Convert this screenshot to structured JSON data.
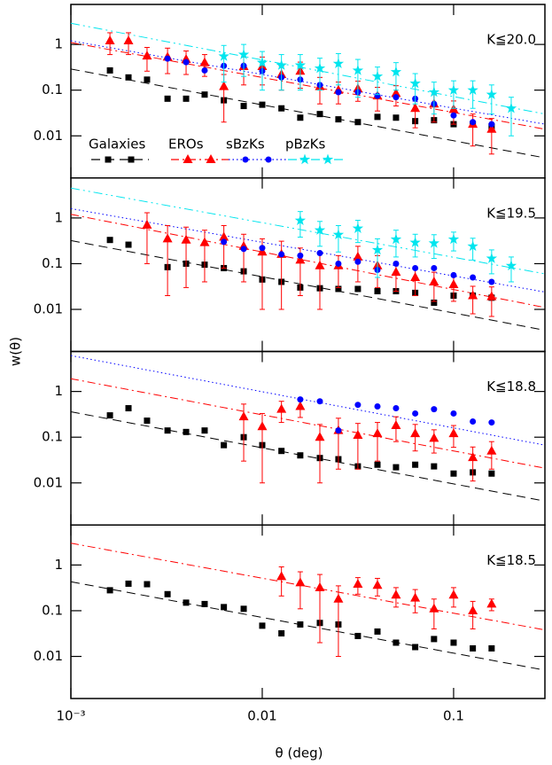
{
  "chart_data": [
    {
      "type": "scatter",
      "label": "K≦20.0",
      "ylabel": "w(θ)",
      "xlog": true,
      "ylog": true,
      "xlim": [
        0.001,
        0.3
      ],
      "ylim": [
        0.0012,
        7.5
      ],
      "yticks": [
        0.01,
        0.1,
        1
      ],
      "x": [
        0.0016,
        0.002,
        0.0025,
        0.0032,
        0.004,
        0.005,
        0.0063,
        0.008,
        0.01,
        0.0126,
        0.0158,
        0.02,
        0.025,
        0.0316,
        0.04,
        0.05,
        0.063,
        0.079,
        0.1,
        0.126,
        0.158,
        0.2
      ],
      "series": [
        {
          "name": "Galaxies",
          "color": "#000000",
          "marker": "square",
          "values": [
            0.27,
            0.19,
            0.17,
            0.065,
            0.065,
            0.08,
            0.06,
            0.045,
            0.048,
            0.04,
            0.025,
            0.03,
            0.023,
            0.02,
            0.026,
            0.025,
            0.021,
            0.022,
            0.018,
            0.018,
            0.016,
            null
          ]
        },
        {
          "name": "EROs",
          "color": "#ff0000",
          "marker": "triangle",
          "values": [
            1.2,
            1.2,
            0.56,
            0.53,
            0.47,
            0.4,
            0.12,
            0.33,
            0.33,
            0.22,
            0.26,
            0.12,
            0.1,
            0.107,
            0.075,
            0.085,
            0.04,
            0.05,
            0.038,
            0.018,
            0.014,
            null
          ],
          "errors": [
            0.6,
            0.6,
            0.3,
            0.3,
            0.25,
            0.2,
            0.1,
            0.2,
            0.2,
            0.12,
            0.15,
            0.07,
            0.05,
            0.05,
            0.04,
            0.04,
            0.025,
            0.03,
            0.02,
            0.012,
            0.01,
            null
          ]
        },
        {
          "name": "sBzKs",
          "color": "#0000ff",
          "marker": "circle",
          "values": [
            null,
            null,
            null,
            0.49,
            0.41,
            0.27,
            0.34,
            0.34,
            0.26,
            0.19,
            0.17,
            0.13,
            0.09,
            0.09,
            0.075,
            0.07,
            0.065,
            0.05,
            0.028,
            0.02,
            0.018,
            null
          ]
        },
        {
          "name": "pBzKs",
          "color": "#00e5ee",
          "marker": "star",
          "values": [
            null,
            null,
            null,
            null,
            null,
            null,
            0.55,
            0.6,
            0.4,
            0.35,
            0.35,
            0.3,
            0.38,
            0.27,
            0.2,
            0.25,
            0.14,
            0.09,
            0.1,
            0.1,
            0.08,
            0.04
          ],
          "errors": [
            null,
            null,
            null,
            null,
            null,
            null,
            0.4,
            0.4,
            0.3,
            0.25,
            0.25,
            0.2,
            0.25,
            0.2,
            0.12,
            0.15,
            0.09,
            0.06,
            0.06,
            0.06,
            0.05,
            0.03
          ]
        }
      ],
      "fits": [
        {
          "color": "#000000",
          "style": "dashed",
          "values": [
            0.29,
            0.0033
          ]
        },
        {
          "color": "#ff0000",
          "style": "dashdot",
          "values": [
            1.1,
            0.014
          ]
        },
        {
          "color": "#0000ff",
          "style": "dotted",
          "values": [
            1.2,
            0.018
          ]
        },
        {
          "color": "#00e5ee",
          "style": "dashdotdot",
          "values": [
            2.9,
            0.03
          ]
        }
      ]
    },
    {
      "type": "scatter",
      "label": "K≦19.5",
      "xlog": true,
      "ylog": true,
      "xlim": [
        0.001,
        0.3
      ],
      "ylim": [
        0.0012,
        7.5
      ],
      "yticks": [
        0.01,
        0.1,
        1
      ],
      "x": [
        0.0016,
        0.002,
        0.0025,
        0.0032,
        0.004,
        0.005,
        0.0063,
        0.008,
        0.01,
        0.0126,
        0.0158,
        0.02,
        0.025,
        0.0316,
        0.04,
        0.05,
        0.063,
        0.079,
        0.1,
        0.126,
        0.158,
        0.2
      ],
      "series": [
        {
          "color": "#000000",
          "marker": "square",
          "values": [
            0.33,
            0.26,
            null,
            0.084,
            0.1,
            0.095,
            0.08,
            0.068,
            0.045,
            0.04,
            0.03,
            0.029,
            0.028,
            0.028,
            0.025,
            0.025,
            0.023,
            0.014,
            0.02,
            0.02,
            0.018,
            null
          ]
        },
        {
          "color": "#ff0000",
          "marker": "triangle",
          "values": [
            null,
            null,
            0.7,
            0.35,
            0.33,
            0.29,
            0.38,
            0.24,
            0.18,
            0.16,
            0.12,
            0.09,
            0.09,
            0.14,
            0.09,
            0.065,
            0.05,
            0.04,
            0.035,
            0.02,
            0.019,
            null
          ],
          "errors": [
            null,
            null,
            0.6,
            0.33,
            0.3,
            0.25,
            0.3,
            0.2,
            0.17,
            0.15,
            0.1,
            0.08,
            0.06,
            0.1,
            0.06,
            0.04,
            0.03,
            0.025,
            0.02,
            0.012,
            0.012,
            null
          ]
        },
        {
          "color": "#0000ff",
          "marker": "circle",
          "values": [
            null,
            null,
            null,
            null,
            null,
            null,
            0.3,
            0.21,
            0.22,
            0.16,
            0.15,
            0.17,
            0.1,
            0.11,
            0.073,
            0.1,
            0.08,
            0.08,
            0.056,
            0.05,
            0.04,
            null
          ]
        },
        {
          "color": "#00e5ee",
          "marker": "star",
          "values": [
            null,
            null,
            null,
            null,
            null,
            null,
            null,
            null,
            null,
            null,
            0.88,
            0.54,
            0.43,
            0.59,
            0.2,
            0.34,
            0.29,
            0.28,
            0.34,
            0.24,
            0.13,
            0.09
          ],
          "errors": [
            null,
            null,
            null,
            null,
            null,
            null,
            null,
            null,
            null,
            null,
            0.5,
            0.3,
            0.25,
            0.3,
            0.15,
            0.2,
            0.15,
            0.15,
            0.15,
            0.12,
            0.07,
            0.05
          ]
        }
      ],
      "fits": [
        {
          "color": "#000000",
          "style": "dashed",
          "values": [
            0.32,
            0.0035
          ]
        },
        {
          "color": "#ff0000",
          "style": "dashdot",
          "values": [
            1.2,
            0.011
          ]
        },
        {
          "color": "#0000ff",
          "style": "dotted",
          "values": [
            1.6,
            0.024
          ]
        },
        {
          "color": "#00e5ee",
          "style": "dashdotdot",
          "values": [
            4.5,
            0.06
          ]
        }
      ]
    },
    {
      "type": "scatter",
      "label": "K≦18.8",
      "xlog": true,
      "ylog": true,
      "xlim": [
        0.001,
        0.3
      ],
      "ylim": [
        0.0012,
        7.5
      ],
      "yticks": [
        0.01,
        0.1,
        1
      ],
      "x": [
        0.0016,
        0.002,
        0.0025,
        0.0032,
        0.004,
        0.005,
        0.0063,
        0.008,
        0.01,
        0.0126,
        0.0158,
        0.02,
        0.025,
        0.0316,
        0.04,
        0.05,
        0.063,
        0.079,
        0.1,
        0.126,
        0.158,
        0.2
      ],
      "series": [
        {
          "color": "#000000",
          "marker": "square",
          "values": [
            0.3,
            0.43,
            0.23,
            0.14,
            0.13,
            0.14,
            0.067,
            0.1,
            0.067,
            0.05,
            0.04,
            0.035,
            0.033,
            0.023,
            0.025,
            0.022,
            0.025,
            0.023,
            0.016,
            0.017,
            0.016,
            null
          ]
        },
        {
          "color": "#ff0000",
          "marker": "triangle",
          "values": [
            null,
            null,
            null,
            null,
            null,
            null,
            null,
            0.28,
            0.17,
            0.41,
            0.47,
            0.1,
            0.14,
            0.11,
            0.12,
            0.18,
            0.12,
            0.095,
            0.12,
            0.036,
            0.05,
            null
          ],
          "errors": [
            null,
            null,
            null,
            null,
            null,
            null,
            null,
            0.25,
            0.16,
            0.2,
            0.2,
            0.09,
            0.12,
            0.09,
            0.09,
            0.1,
            0.07,
            0.05,
            0.06,
            0.025,
            0.03,
            null
          ]
        },
        {
          "color": "#0000ff",
          "marker": "circle",
          "values": [
            null,
            null,
            null,
            null,
            null,
            null,
            null,
            null,
            null,
            null,
            0.67,
            0.61,
            0.14,
            0.51,
            0.47,
            0.43,
            0.33,
            0.41,
            0.33,
            0.22,
            0.21,
            null
          ]
        }
      ],
      "fits": [
        {
          "color": "#000000",
          "style": "dashed",
          "values": [
            0.36,
            0.004
          ]
        },
        {
          "color": "#ff0000",
          "style": "dashdot",
          "values": [
            1.9,
            0.021
          ]
        },
        {
          "color": "#0000ff",
          "style": "dotted",
          "values": [
            6.1,
            0.067
          ]
        }
      ]
    },
    {
      "type": "scatter",
      "label": "K≦18.5",
      "xlabel": "θ (deg)",
      "xlog": true,
      "ylog": true,
      "xlim": [
        0.001,
        0.3
      ],
      "ylim": [
        0.0012,
        7.5
      ],
      "yticks": [
        0.01,
        0.1,
        1
      ],
      "xticks": [
        {
          "value": 0.001,
          "label": "10⁻³"
        },
        0.01,
        0.1
      ],
      "x": [
        0.0016,
        0.002,
        0.0025,
        0.0032,
        0.004,
        0.005,
        0.0063,
        0.008,
        0.01,
        0.0126,
        0.0158,
        0.02,
        0.025,
        0.0316,
        0.04,
        0.05,
        0.063,
        0.079,
        0.1,
        0.126,
        0.158,
        0.2
      ],
      "series": [
        {
          "color": "#000000",
          "marker": "square",
          "values": [
            0.28,
            0.39,
            0.38,
            0.23,
            0.15,
            0.14,
            0.12,
            0.11,
            0.047,
            0.032,
            0.05,
            0.054,
            0.05,
            0.028,
            0.035,
            0.02,
            0.016,
            0.024,
            0.02,
            0.015,
            0.015,
            null
          ]
        },
        {
          "color": "#ff0000",
          "marker": "triangle",
          "values": [
            null,
            null,
            null,
            null,
            null,
            null,
            null,
            null,
            null,
            0.56,
            0.41,
            0.32,
            0.18,
            0.38,
            0.36,
            0.22,
            0.19,
            0.11,
            0.22,
            0.1,
            0.14,
            null
          ],
          "errors": [
            null,
            null,
            null,
            null,
            null,
            null,
            null,
            null,
            null,
            0.35,
            0.3,
            0.3,
            0.17,
            0.15,
            0.15,
            0.1,
            0.1,
            0.07,
            0.1,
            0.06,
            0.04,
            null
          ]
        }
      ],
      "fits": [
        {
          "color": "#000000",
          "style": "dashed",
          "values": [
            0.43,
            0.005
          ]
        },
        {
          "color": "#ff0000",
          "style": "dashdot",
          "values": [
            3.0,
            0.038
          ]
        }
      ]
    }
  ]
}
